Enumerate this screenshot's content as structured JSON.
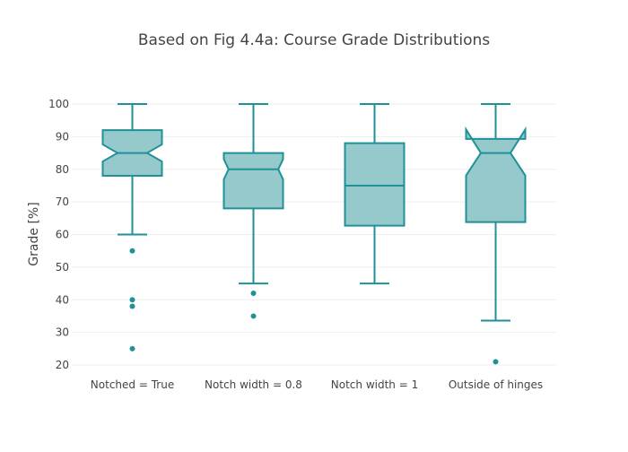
{
  "chart_data": {
    "type": "box",
    "title": "Based on Fig 4.4a: Course Grade Distributions",
    "xlabel": "",
    "ylabel": "Grade [%]",
    "ylim": [
      18,
      102
    ],
    "yticks": [
      20,
      30,
      40,
      50,
      60,
      70,
      80,
      90,
      100
    ],
    "grid": true,
    "color": "#1f9197",
    "fill": "#8fc6c9",
    "categories": [
      "Notched = True",
      "Notch width = 0.8",
      "Notch width = 1",
      "Outside of hinges"
    ],
    "boxes": [
      {
        "name": "Notched = True",
        "upper_whisker": 100,
        "q3": 92,
        "median": 85,
        "q1": 78,
        "lower_whisker": 60,
        "notch": [
          82.4,
          87.6
        ],
        "notch_width": 0.25,
        "outliers": [
          55,
          40,
          38,
          25
        ]
      },
      {
        "name": "Notch width = 0.8",
        "upper_whisker": 100,
        "q3": 85,
        "median": 80,
        "q1": 68,
        "lower_whisker": 45,
        "notch": [
          76.9,
          83.1
        ],
        "notch_width": 0.08,
        "outliers": [
          42,
          35
        ]
      },
      {
        "name": "Notch width = 1",
        "upper_whisker": 100,
        "q3": 88,
        "median": 75,
        "q1": 62.7,
        "lower_whisker": 45,
        "notch": null,
        "notch_width": 0,
        "outliers": []
      },
      {
        "name": "Outside of hinges",
        "upper_whisker": 100,
        "q3": 89.3,
        "median": 85,
        "q1": 63.8,
        "lower_whisker": 33.6,
        "notch": [
          78.1,
          92.2
        ],
        "notch_width": 0.25,
        "outliers": [
          21
        ]
      }
    ]
  }
}
